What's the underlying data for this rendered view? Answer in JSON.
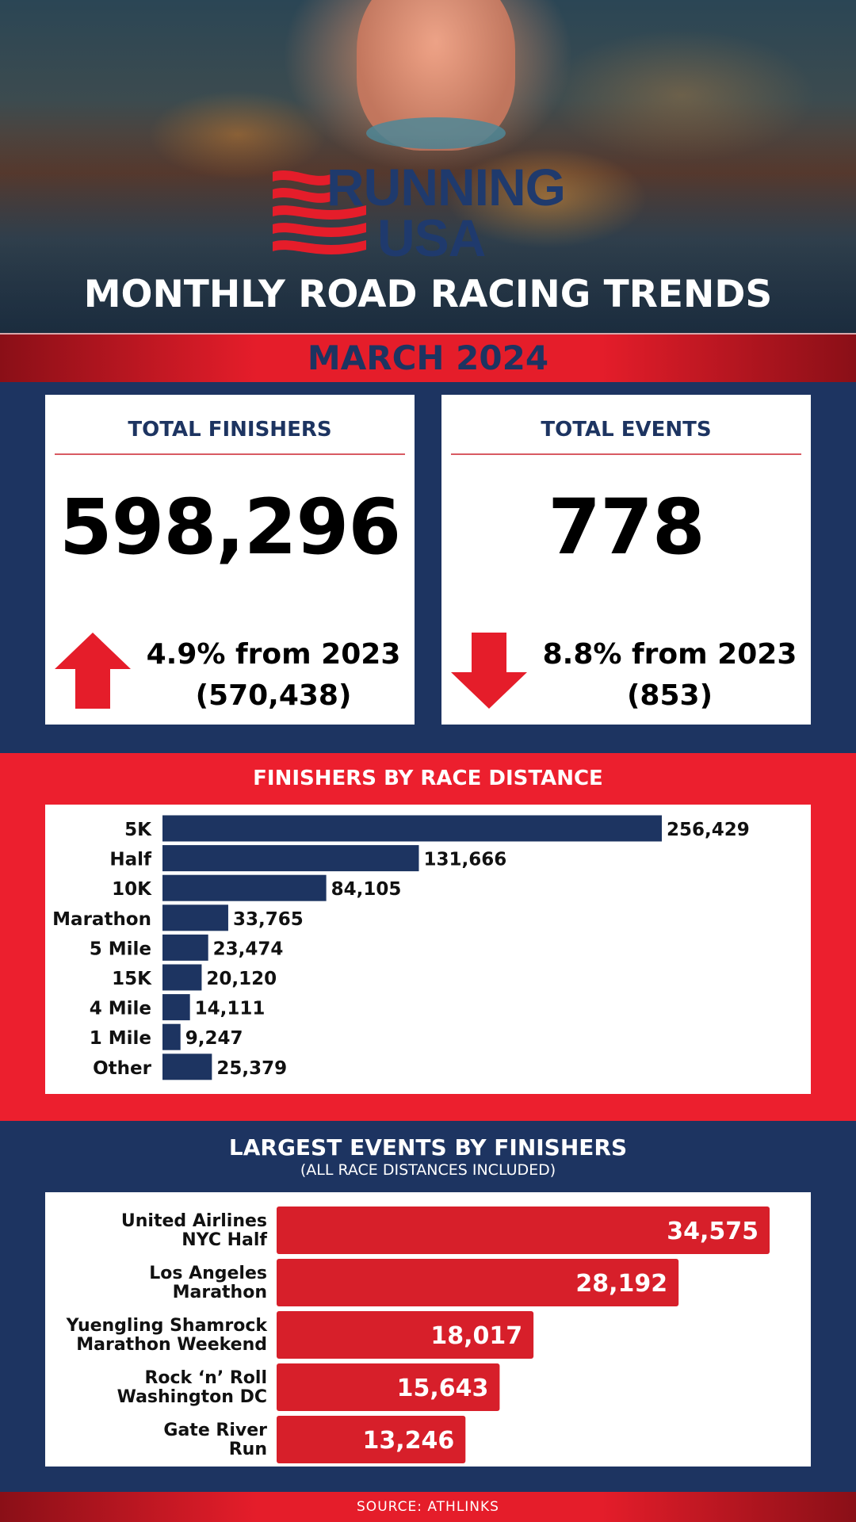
{
  "hero": {
    "brand_line1": "RUNNING",
    "brand_line2": "USA",
    "title": "MONTHLY ROAD RACING TRENDS"
  },
  "month": "MARCH 2024",
  "stats": {
    "finishers": {
      "title": "TOTAL FINISHERS",
      "value": "598,296",
      "change": "4.9% from 2023",
      "previous": "(570,438)",
      "direction": "up"
    },
    "events": {
      "title": "TOTAL EVENTS",
      "value": "778",
      "change": "8.8% from 2023",
      "previous": "(853)",
      "direction": "down"
    }
  },
  "colors": {
    "navy": "#1d3461",
    "red": "#e51d2a",
    "bar_navy": "#1d3461",
    "bar_red": "#d71f2a"
  },
  "chart_data": [
    {
      "type": "bar",
      "orientation": "horizontal",
      "title": "FINISHERS BY RACE DISTANCE",
      "categories": [
        "5K",
        "Half",
        "10K",
        "Marathon",
        "5 Mile",
        "15K",
        "4 Mile",
        "1 Mile",
        "Other"
      ],
      "values": [
        256429,
        131666,
        84105,
        33765,
        23474,
        20120,
        14111,
        9247,
        25379
      ],
      "labels": [
        "256,429",
        "131,666",
        "84,105",
        "33,765",
        "23,474",
        "20,120",
        "14,111",
        "9,247",
        "25,379"
      ],
      "xlim": [
        0,
        256429
      ],
      "grid": false
    },
    {
      "type": "bar",
      "orientation": "horizontal",
      "title": "LARGEST EVENTS BY FINISHERS",
      "subtitle": "(ALL RACE DISTANCES INCLUDED)",
      "categories": [
        [
          "United Airlines",
          "NYC Half"
        ],
        [
          "Los Angeles",
          "Marathon"
        ],
        [
          "Yuengling Shamrock",
          "Marathon Weekend"
        ],
        [
          "Rock ‘n’ Roll",
          "Washington DC"
        ],
        [
          "Gate River",
          "Run"
        ]
      ],
      "values": [
        34575,
        28192,
        18017,
        15643,
        13246
      ],
      "labels": [
        "34,575",
        "28,192",
        "18,017",
        "15,643",
        "13,246"
      ],
      "xlim": [
        0,
        34575
      ],
      "grid": false
    }
  ],
  "footer": "SOURCE: ATHLINKS"
}
